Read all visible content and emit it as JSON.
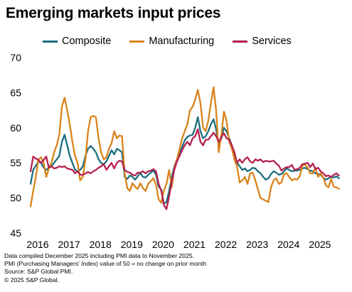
{
  "title": "Emerging markets input prices",
  "legend": [
    {
      "label": "Composite",
      "color": "#1c6e7d"
    },
    {
      "label": "Manufacturing",
      "color": "#d9831b"
    },
    {
      "label": "Services",
      "color": "#b5204f"
    }
  ],
  "footnotes": [
    "Data compiled December 2025 including PMI data to November 2025.",
    "PMI  (Purchasing Managers' Index) value of 50 = no change on prior month",
    "Source: S&P Global PMI.",
    "© 2025 S&P Global."
  ],
  "chart_data": {
    "type": "line",
    "title": "Emerging markets input prices",
    "xlabel": "",
    "ylabel": "",
    "x_start": "2016-01",
    "x_end": "2025-11",
    "frequency": "monthly",
    "xticks": [
      "2016",
      "2017",
      "2018",
      "2019",
      "2020",
      "2021",
      "2022",
      "2023",
      "2024",
      "2025"
    ],
    "yticks": [
      45,
      50,
      55,
      60,
      65,
      70
    ],
    "ylim": [
      45,
      70
    ],
    "grid": false,
    "legend_position": "top",
    "series": [
      {
        "name": "Composite",
        "color": "#1c6e7d",
        "values": [
          52.0,
          54.0,
          54.6,
          55.2,
          55.0,
          54.3,
          54.0,
          54.3,
          54.5,
          55.0,
          55.5,
          56.0,
          58.0,
          59.0,
          57.5,
          56.0,
          55.0,
          54.0,
          53.8,
          54.0,
          54.5,
          56.0,
          57.0,
          57.4,
          57.0,
          56.5,
          55.5,
          55.0,
          54.8,
          55.2,
          56.0,
          56.8,
          56.2,
          57.0,
          56.8,
          56.5,
          53.0,
          52.7,
          53.2,
          53.0,
          52.6,
          53.1,
          53.6,
          53.0,
          52.9,
          53.3,
          53.6,
          53.9,
          53.3,
          51.6,
          51.2,
          49.2,
          49.4,
          51.0,
          53.0,
          54.5,
          55.5,
          56.2,
          57.3,
          58.2,
          58.7,
          58.9,
          59.0,
          60.0,
          61.5,
          59.5,
          58.5,
          58.8,
          59.5,
          60.5,
          61.2,
          59.8,
          57.5,
          58.5,
          60.0,
          59.5,
          58.5,
          57.5,
          56.0,
          55.0,
          54.5,
          54.0,
          54.2,
          53.8,
          54.0,
          54.3,
          54.2,
          53.8,
          53.5,
          53.0,
          52.6,
          52.8,
          53.4,
          53.8,
          53.6,
          53.3,
          53.4,
          53.8,
          54.2,
          54.0,
          53.8,
          53.9,
          53.9,
          54.0,
          54.2,
          54.3,
          54.1,
          53.9,
          53.8,
          53.5,
          53.4,
          53.3,
          52.9,
          52.6,
          52.8,
          53.0,
          52.9,
          53.1,
          52.8
        ]
      },
      {
        "name": "Manufacturing",
        "color": "#d9831b",
        "values": [
          48.8,
          51.0,
          53.0,
          55.5,
          55.8,
          55.0,
          53.0,
          54.2,
          55.0,
          56.5,
          57.5,
          59.0,
          63.0,
          64.3,
          62.5,
          60.5,
          58.0,
          56.0,
          55.0,
          52.5,
          53.0,
          55.5,
          59.5,
          61.5,
          61.7,
          61.5,
          58.5,
          56.5,
          55.5,
          55.8,
          57.0,
          57.8,
          59.5,
          58.5,
          58.9,
          58.8,
          53.5,
          51.4,
          51.0,
          52.1,
          51.6,
          51.3,
          52.1,
          51.4,
          51.0,
          52.0,
          52.4,
          52.8,
          51.9,
          49.8,
          49.3,
          51.0,
          52.0,
          54.0,
          51.5,
          54.3,
          55.5,
          57.0,
          58.5,
          59.5,
          60.5,
          62.5,
          63.0,
          64.0,
          65.4,
          63.5,
          60.0,
          59.5,
          61.0,
          63.5,
          65.8,
          62.5,
          56.5,
          59.0,
          62.3,
          61.0,
          58.0,
          57.0,
          55.5,
          54.5,
          52.2,
          52.5,
          53.0,
          52.0,
          53.5,
          53.6,
          52.5,
          51.2,
          50.0,
          49.8,
          49.6,
          49.4,
          51.5,
          52.5,
          52.8,
          52.0,
          52.2,
          53.4,
          53.5,
          53.0,
          52.5,
          52.7,
          52.6,
          53.1,
          54.6,
          54.8,
          54.3,
          53.5,
          53.5,
          54.3,
          53.0,
          53.5,
          52.9,
          51.8,
          51.5,
          52.7,
          51.6,
          51.5,
          51.3
        ]
      },
      {
        "name": "Services",
        "color": "#b5204f",
        "values": [
          53.8,
          55.9,
          55.6,
          55.4,
          55.0,
          55.4,
          55.9,
          54.3,
          54.5,
          54.2,
          54.3,
          54.5,
          54.4,
          54.5,
          54.2,
          54.1,
          54.0,
          53.5,
          53.8,
          53.3,
          53.3,
          53.5,
          53.7,
          53.5,
          53.8,
          54.0,
          54.3,
          54.5,
          54.8,
          54.0,
          54.5,
          55.0,
          54.2,
          55.0,
          55.3,
          55.2,
          54.0,
          53.7,
          53.6,
          53.3,
          53.2,
          53.6,
          53.6,
          53.8,
          53.5,
          53.8,
          53.9,
          54.1,
          53.8,
          52.0,
          51.0,
          49.0,
          48.4,
          50.2,
          52.3,
          54.0,
          55.2,
          56.0,
          56.8,
          57.5,
          58.0,
          57.5,
          58.5,
          58.8,
          59.8,
          58.0,
          57.5,
          58.3,
          58.3,
          58.8,
          59.3,
          58.8,
          58.0,
          58.7,
          59.2,
          58.5,
          58.3,
          57.5,
          56.5,
          55.0,
          55.5,
          55.0,
          55.5,
          55.8,
          55.2,
          55.0,
          55.5,
          55.3,
          55.5,
          55.1,
          55.3,
          55.2,
          55.2,
          55.3,
          54.9,
          54.6,
          53.9,
          54.2,
          54.4,
          54.4,
          54.7,
          54.0,
          54.1,
          54.3,
          54.8,
          54.9,
          55.0,
          54.4,
          54.9,
          54.1,
          54.3,
          53.8,
          53.5,
          53.1,
          53.2,
          53.0,
          53.3,
          53.5,
          53.2
        ]
      }
    ]
  }
}
